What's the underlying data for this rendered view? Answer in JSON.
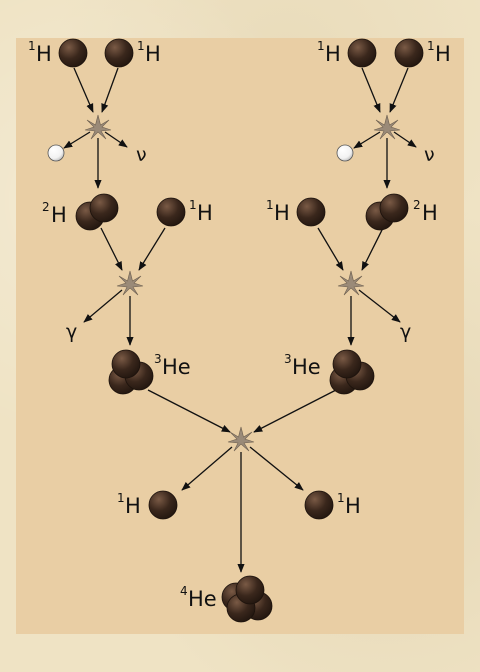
{
  "colors": {
    "panel": "#e9ceA4",
    "nucleon": "#3a271c",
    "nucleon_highlight": "#7a5a45",
    "arrow": "#111111",
    "burst": "#8a7a6a",
    "positron": "#ffffff"
  },
  "labels": {
    "h1_a_mass": "1",
    "h1_a_sym": "H",
    "h1_b_mass": "1",
    "h1_b_sym": "H",
    "h1_c_mass": "1",
    "h1_c_sym": "H",
    "h1_d_mass": "1",
    "h1_d_sym": "H",
    "neutrino_left": "ν",
    "neutrino_right": "ν",
    "h2_left_mass": "2",
    "h2_left_sym": "H",
    "h1_left2_mass": "1",
    "h1_left2_sym": "H",
    "h1_right2_mass": "1",
    "h1_right2_sym": "H",
    "h2_right_mass": "2",
    "h2_right_sym": "H",
    "gamma_left": "γ",
    "gamma_right": "γ",
    "he3_left_mass": "3",
    "he3_left_sym": "He",
    "he3_right_mass": "3",
    "he3_right_sym": "He",
    "h1_out_left_mass": "1",
    "h1_out_left_sym": "H",
    "h1_out_right_mass": "1",
    "h1_out_right_sym": "H",
    "he4_mass": "4",
    "he4_sym": "He"
  }
}
